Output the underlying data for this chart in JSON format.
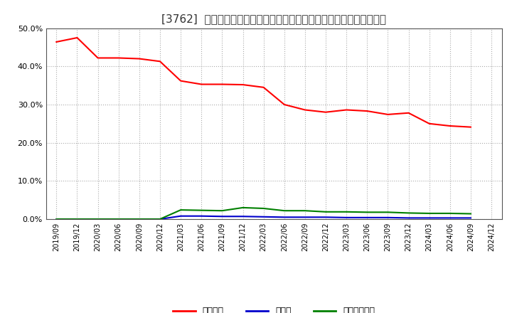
{
  "title": "[3762]  自己資本、のれん、繰延税金資産の総資産に対する比率の推移",
  "x_labels": [
    "2019/09",
    "2019/12",
    "2020/03",
    "2020/06",
    "2020/09",
    "2020/12",
    "2021/03",
    "2021/06",
    "2021/09",
    "2021/12",
    "2022/03",
    "2022/06",
    "2022/09",
    "2022/12",
    "2023/03",
    "2023/06",
    "2023/09",
    "2023/12",
    "2024/03",
    "2024/06",
    "2024/09",
    "2024/12"
  ],
  "jikoshihon": [
    0.464,
    0.475,
    0.422,
    0.422,
    0.42,
    0.413,
    0.362,
    0.353,
    0.353,
    0.352,
    0.345,
    0.3,
    0.286,
    0.28,
    0.286,
    0.283,
    0.274,
    0.278,
    0.25,
    0.244,
    0.241,
    null
  ],
  "noren": [
    0.0,
    0.0,
    0.0,
    0.0,
    0.0,
    0.0,
    0.008,
    0.008,
    0.007,
    0.007,
    0.006,
    0.005,
    0.005,
    0.005,
    0.004,
    0.004,
    0.004,
    0.003,
    0.003,
    0.003,
    0.003,
    null
  ],
  "kurinobezei": [
    0.0,
    0.0,
    0.0,
    0.0,
    0.0,
    0.0,
    0.024,
    0.023,
    0.022,
    0.03,
    0.028,
    0.022,
    0.022,
    0.019,
    0.019,
    0.018,
    0.018,
    0.016,
    0.015,
    0.015,
    0.014,
    null
  ],
  "jikoshihon_color": "#ff0000",
  "noren_color": "#0000cc",
  "kurinobezei_color": "#008000",
  "background_color": "#ffffff",
  "grid_color": "#aaaaaa",
  "ylim": [
    0.0,
    0.5
  ],
  "yticks": [
    0.0,
    0.1,
    0.2,
    0.3,
    0.4,
    0.5
  ],
  "legend_labels": [
    "自己資本",
    "のれん",
    "繰延税金資産"
  ]
}
